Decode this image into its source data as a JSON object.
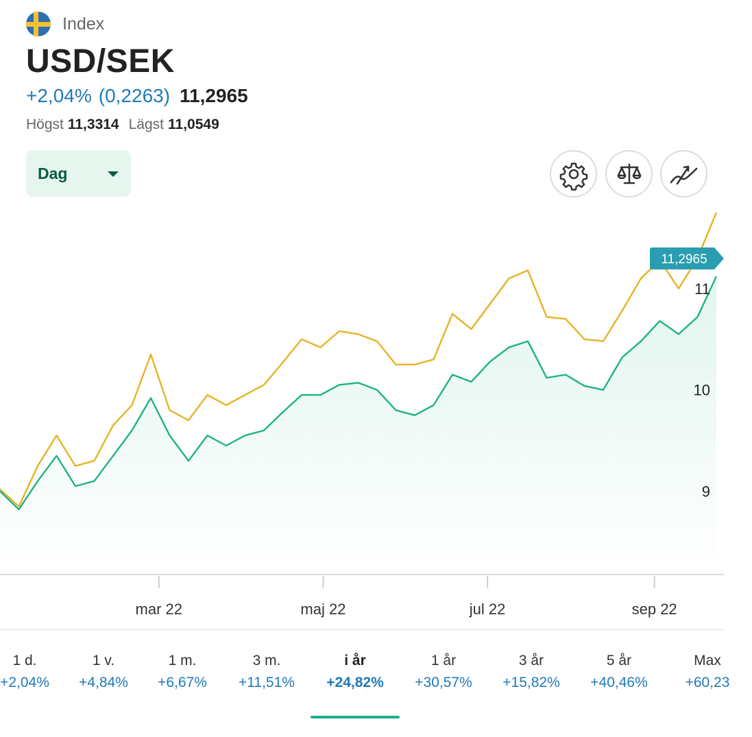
{
  "header": {
    "category": "Index",
    "title": "USD/SEK",
    "change_percent": "+2,04%",
    "change_points": "(0,2263)",
    "last": "11,2965",
    "high_label": "Högst",
    "high_value": "11,3314",
    "low_label": "Lägst",
    "low_value": "11,0549"
  },
  "controls": {
    "period_label": "Dag",
    "buttons": [
      {
        "name": "settings",
        "icon": "gear-icon"
      },
      {
        "name": "compare",
        "icon": "scale-icon"
      },
      {
        "name": "trend",
        "icon": "trend-icon"
      }
    ]
  },
  "colors": {
    "primary_series": "#1db37f",
    "comparison_series": "#e6b325",
    "price_tag": "#2a9db0",
    "accent": "#1fae8c",
    "positive": "#1f7ab8"
  },
  "chart_data": {
    "type": "line",
    "price_tag": "11,2965",
    "x_ticks": [
      "mar 22",
      "maj 22",
      "jul 22",
      "sep 22"
    ],
    "y_ticks": [
      "9",
      "10",
      "11"
    ],
    "ylim": [
      8.3,
      11.75
    ],
    "x": [
      "2022-01-01",
      "2022-01-08",
      "2022-01-15",
      "2022-01-22",
      "2022-01-29",
      "2022-02-05",
      "2022-02-12",
      "2022-02-19",
      "2022-02-26",
      "2022-03-05",
      "2022-03-12",
      "2022-03-19",
      "2022-03-26",
      "2022-04-02",
      "2022-04-09",
      "2022-04-16",
      "2022-04-23",
      "2022-04-30",
      "2022-05-07",
      "2022-05-14",
      "2022-05-21",
      "2022-05-28",
      "2022-06-04",
      "2022-06-11",
      "2022-06-18",
      "2022-06-25",
      "2022-07-02",
      "2022-07-09",
      "2022-07-16",
      "2022-07-23",
      "2022-07-30",
      "2022-08-06",
      "2022-08-13",
      "2022-08-20",
      "2022-08-27",
      "2022-09-03",
      "2022-09-10",
      "2022-09-17",
      "2022-09-24"
    ],
    "series": [
      {
        "values": [
          9.0,
          8.82,
          9.1,
          9.35,
          9.05,
          9.1,
          9.35,
          9.6,
          9.92,
          9.55,
          9.3,
          9.55,
          9.45,
          9.55,
          9.6,
          9.78,
          9.95,
          9.95,
          10.05,
          10.07,
          10.0,
          9.8,
          9.75,
          9.85,
          10.15,
          10.08,
          10.28,
          10.42,
          10.48,
          10.12,
          10.15,
          10.04,
          10.0,
          10.32,
          10.48,
          10.68,
          10.55,
          10.72,
          11.12
        ]
      },
      {
        "values": [
          9.02,
          8.85,
          9.25,
          9.55,
          9.25,
          9.3,
          9.65,
          9.85,
          10.35,
          9.8,
          9.7,
          9.95,
          9.85,
          9.95,
          10.05,
          10.27,
          10.5,
          10.42,
          10.58,
          10.55,
          10.48,
          10.25,
          10.25,
          10.3,
          10.75,
          10.6,
          10.85,
          11.1,
          11.18,
          10.72,
          10.7,
          10.5,
          10.48,
          10.78,
          11.1,
          11.28,
          11.0,
          11.3,
          11.75
        ]
      }
    ]
  },
  "tabs": [
    {
      "label": "1 d.",
      "value": "+2,04%"
    },
    {
      "label": "1 v.",
      "value": "+4,84%"
    },
    {
      "label": "1 m.",
      "value": "+6,67%"
    },
    {
      "label": "3 m.",
      "value": "+11,51%"
    },
    {
      "label": "i år",
      "value": "+24,82%",
      "active": true
    },
    {
      "label": "1 år",
      "value": "+30,57%"
    },
    {
      "label": "3 år",
      "value": "+15,82%"
    },
    {
      "label": "5 år",
      "value": "+40,46%"
    },
    {
      "label": "Max",
      "value": "+60,23"
    }
  ]
}
